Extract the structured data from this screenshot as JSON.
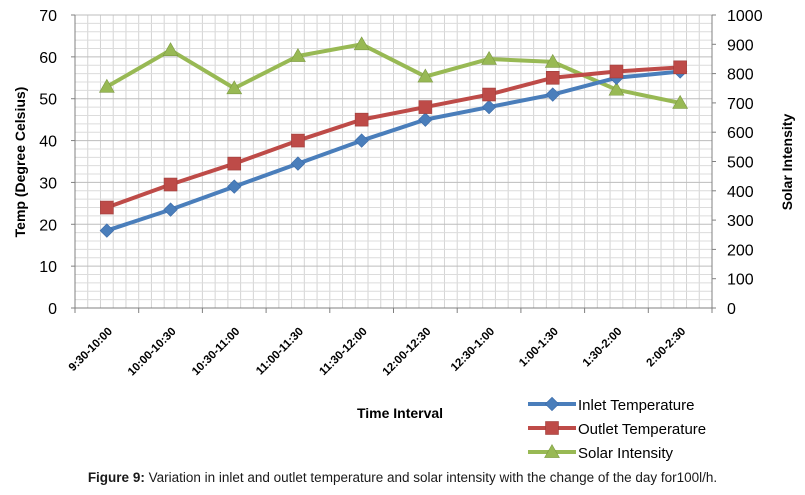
{
  "chart_data": {
    "type": "line",
    "categories": [
      "9:30-10:00",
      "10:00-10:30",
      "10:30-11:00",
      "11:00-11:30",
      "11:30-12:00",
      "12:00-12:30",
      "12:30-1:00",
      "1:00-1:30",
      "1:30-2:00",
      "2:00-2:30"
    ],
    "series": [
      {
        "name": "Inlet Temperature",
        "axis": "left",
        "color": "#4a7ebb",
        "marker": "diamond",
        "values": [
          18.5,
          23.5,
          29,
          34.5,
          40,
          45,
          48,
          51,
          55,
          56.5
        ]
      },
      {
        "name": "Outlet Temperature",
        "axis": "left",
        "color": "#be4b48",
        "marker": "square",
        "values": [
          24,
          29.5,
          34.5,
          40,
          45,
          48,
          51,
          55,
          56.5,
          57.5
        ]
      },
      {
        "name": "Solar Intensity",
        "axis": "right",
        "color": "#98b954",
        "marker": "triangle",
        "values": [
          755,
          880,
          750,
          860,
          900,
          790,
          850,
          840,
          745,
          700
        ]
      }
    ],
    "xlabel": "Time Interval",
    "ylabel": "Temp (Degree Celsius)",
    "y2label": "Solar Intensity",
    "ylim": [
      0,
      70
    ],
    "yticks": [
      0,
      10,
      20,
      30,
      40,
      50,
      60,
      70
    ],
    "y2lim": [
      0,
      1000
    ],
    "y2ticks": [
      0,
      100,
      200,
      300,
      400,
      500,
      600,
      700,
      800,
      900,
      1000
    ],
    "grid": true,
    "legend": "bottom-right"
  },
  "caption": {
    "label": "Figure 9:",
    "text": " Variation in inlet and outlet temperature and solar intensity with the change of the day for100l/h."
  }
}
